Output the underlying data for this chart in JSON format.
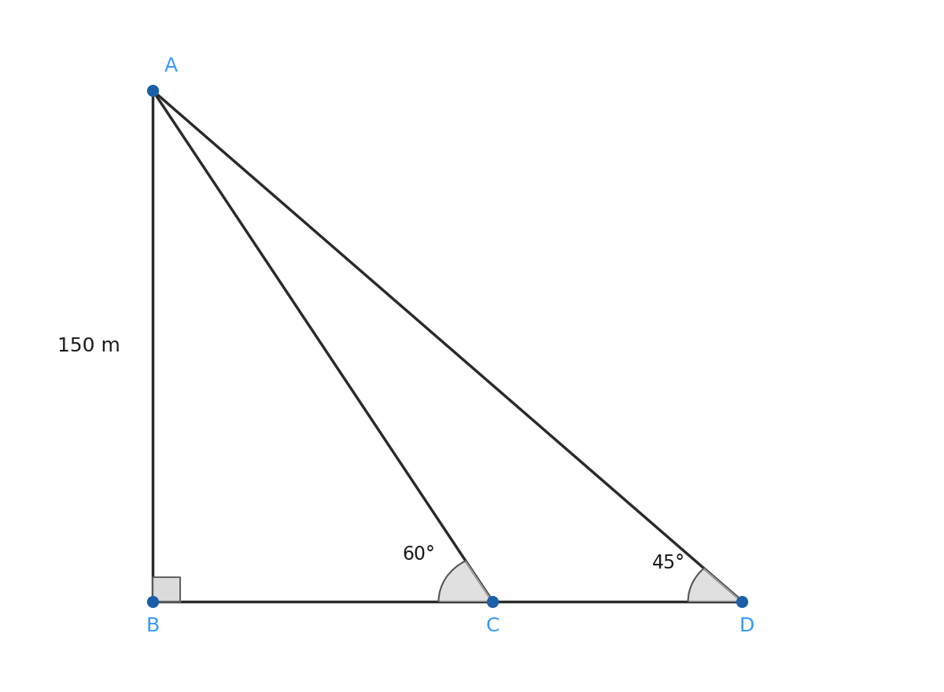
{
  "background_color": "#ffffff",
  "point_color": "#1a5fa8",
  "line_color": "#2a2a2a",
  "label_color": "#3399ff",
  "text_color": "#1a1a1a",
  "points": {
    "A": [
      150,
      600
    ],
    "B": [
      150,
      0
    ],
    "C": [
      496,
      0
    ],
    "D": [
      750,
      0
    ]
  },
  "height_label": "150 m",
  "angle_C": "60°",
  "angle_D": "45°",
  "xlim": [
    0,
    950
  ],
  "ylim": [
    -100,
    700
  ],
  "figsize": [
    12.0,
    8.8
  ],
  "dpi": 100,
  "point_size": 100,
  "line_width": 2.5,
  "font_size_labels": 18,
  "font_size_angles": 17,
  "font_size_height": 18
}
